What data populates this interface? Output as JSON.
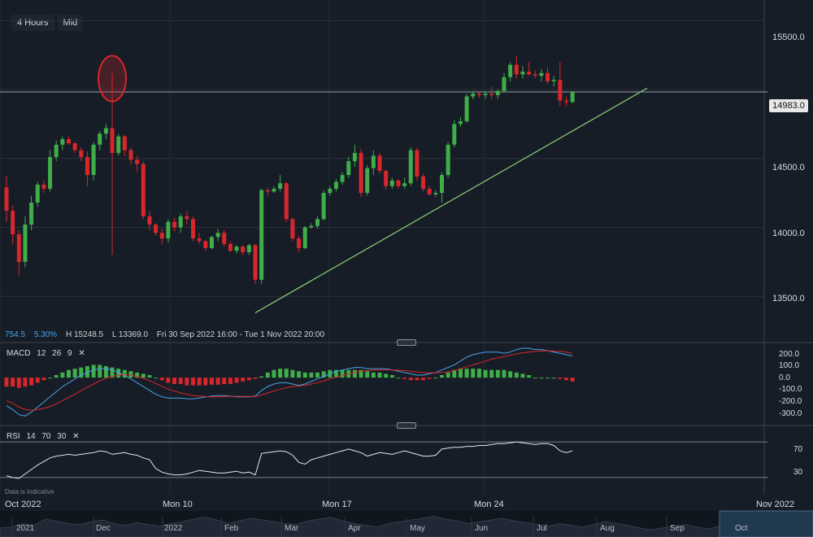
{
  "toolbar": {
    "interval": "4 Hours",
    "price_type": "Mid"
  },
  "info": {
    "value": "754.5",
    "change": "5.30%",
    "high": "H 15248.5",
    "low": "L 13369.0",
    "range": "Fri 30 Sep 2022 16:00 - Tue 1 Nov 2022 20:00"
  },
  "disclaimer": "Data is indicative",
  "current_price": "14983.0",
  "macd": {
    "name": "MACD",
    "fast": "12",
    "slow": "26",
    "signal": "9",
    "close_icon": "close-icon"
  },
  "rsi": {
    "name": "RSI",
    "period": "14",
    "upper": "70",
    "lower": "30",
    "close_icon": "close-icon"
  },
  "x_axis": [
    "Oct 2022",
    "Mon 10",
    "Mon 17",
    "Mon 24",
    "Nov 2022"
  ],
  "navigator": [
    "2021",
    "Dec",
    "2022",
    "Feb",
    "Mar",
    "Apr",
    "May",
    "Jun",
    "Jul",
    "Aug",
    "Sep",
    "Oct"
  ],
  "colors": {
    "up": "#3fae4a",
    "down": "#d9262c",
    "macd_line": "#4aa3e8",
    "signal_line": "#d9262c",
    "trend_line": "#8fd07a",
    "background": "#161d26"
  },
  "chart_data": [
    {
      "type": "candlestick",
      "ylim": [
        13300,
        15650
      ],
      "y_ticks": [
        "15500.0",
        "15000.0",
        "14500.0",
        "14000.0",
        "13500.0"
      ],
      "last_price": 14983,
      "candles": [
        [
          14290,
          14370,
          14040,
          14120
        ],
        [
          14120,
          14160,
          13880,
          13950
        ],
        [
          13950,
          13980,
          13650,
          13750
        ],
        [
          13750,
          14080,
          13710,
          14020
        ],
        [
          14020,
          14230,
          13980,
          14180
        ],
        [
          14180,
          14330,
          14150,
          14310
        ],
        [
          14310,
          14340,
          14250,
          14280
        ],
        [
          14280,
          14560,
          14260,
          14510
        ],
        [
          14510,
          14630,
          14480,
          14600
        ],
        [
          14600,
          14660,
          14560,
          14640
        ],
        [
          14640,
          14660,
          14600,
          14610
        ],
        [
          14610,
          14620,
          14540,
          14560
        ],
        [
          14560,
          14580,
          14480,
          14510
        ],
        [
          14510,
          14550,
          14300,
          14380
        ],
        [
          14380,
          14620,
          14340,
          14600
        ],
        [
          14600,
          14700,
          14560,
          14680
        ],
        [
          14680,
          14750,
          14640,
          14720
        ],
        [
          14720,
          15120,
          13800,
          14540
        ],
        [
          14540,
          14680,
          14520,
          14660
        ],
        [
          14660,
          14670,
          14520,
          14560
        ],
        [
          14560,
          14580,
          14460,
          14490
        ],
        [
          14490,
          14520,
          14400,
          14460
        ],
        [
          14460,
          14480,
          14060,
          14080
        ],
        [
          14080,
          14120,
          13980,
          14020
        ],
        [
          14020,
          14030,
          13940,
          13960
        ],
        [
          13960,
          13990,
          13880,
          13920
        ],
        [
          13920,
          14060,
          13890,
          14040
        ],
        [
          14040,
          14070,
          13970,
          14000
        ],
        [
          14000,
          14100,
          13960,
          14080
        ],
        [
          14080,
          14120,
          14020,
          14060
        ],
        [
          14060,
          14080,
          13900,
          13920
        ],
        [
          13920,
          13960,
          13880,
          13900
        ],
        [
          13900,
          13910,
          13830,
          13850
        ],
        [
          13850,
          13940,
          13840,
          13930
        ],
        [
          13930,
          13990,
          13900,
          13960
        ],
        [
          13960,
          13980,
          13860,
          13880
        ],
        [
          13880,
          13900,
          13820,
          13830
        ],
        [
          13830,
          13870,
          13810,
          13860
        ],
        [
          13860,
          13870,
          13800,
          13820
        ],
        [
          13820,
          13880,
          13800,
          13870
        ],
        [
          13870,
          13880,
          13590,
          13620
        ],
        [
          13620,
          14280,
          13590,
          14270
        ],
        [
          14270,
          14290,
          14230,
          14260
        ],
        [
          14260,
          14300,
          14250,
          14280
        ],
        [
          14280,
          14380,
          14260,
          14320
        ],
        [
          14320,
          14330,
          14040,
          14060
        ],
        [
          14060,
          14070,
          13900,
          13920
        ],
        [
          13920,
          13940,
          13820,
          13850
        ],
        [
          13850,
          14010,
          13840,
          14000
        ],
        [
          14000,
          14030,
          13990,
          14010
        ],
        [
          14010,
          14080,
          13990,
          14060
        ],
        [
          14060,
          14270,
          14050,
          14250
        ],
        [
          14250,
          14300,
          14230,
          14280
        ],
        [
          14280,
          14350,
          14260,
          14330
        ],
        [
          14330,
          14400,
          14310,
          14380
        ],
        [
          14380,
          14510,
          14360,
          14480
        ],
        [
          14480,
          14600,
          14440,
          14540
        ],
        [
          14540,
          14570,
          14220,
          14250
        ],
        [
          14250,
          14450,
          14230,
          14430
        ],
        [
          14430,
          14560,
          14380,
          14520
        ],
        [
          14520,
          14540,
          14390,
          14410
        ],
        [
          14410,
          14420,
          14270,
          14300
        ],
        [
          14300,
          14360,
          14280,
          14340
        ],
        [
          14340,
          14350,
          14280,
          14300
        ],
        [
          14300,
          14360,
          14280,
          14320
        ],
        [
          14320,
          14580,
          14300,
          14560
        ],
        [
          14560,
          14580,
          14340,
          14370
        ],
        [
          14370,
          14390,
          14260,
          14280
        ],
        [
          14280,
          14300,
          14230,
          14240
        ],
        [
          14240,
          14270,
          14220,
          14250
        ],
        [
          14250,
          14400,
          14180,
          14380
        ],
        [
          14380,
          14620,
          14360,
          14600
        ],
        [
          14600,
          14780,
          14580,
          14750
        ],
        [
          14750,
          14800,
          14730,
          14770
        ],
        [
          14770,
          14970,
          14760,
          14950
        ],
        [
          14950,
          14990,
          14930,
          14970
        ],
        [
          14970,
          14980,
          14940,
          14960
        ],
        [
          14960,
          14990,
          14930,
          14970
        ],
        [
          14970,
          15020,
          14930,
          14960
        ],
        [
          14960,
          15000,
          14930,
          14990
        ],
        [
          14990,
          15120,
          14980,
          15090
        ],
        [
          15090,
          15200,
          15060,
          15180
        ],
        [
          15180,
          15240,
          15080,
          15110
        ],
        [
          15110,
          15170,
          15080,
          15130
        ],
        [
          15130,
          15200,
          15100,
          15110
        ],
        [
          15110,
          15140,
          15080,
          15100
        ],
        [
          15100,
          15150,
          15060,
          15120
        ],
        [
          15120,
          15160,
          15040,
          15060
        ],
        [
          15060,
          15100,
          15020,
          15070
        ],
        [
          15070,
          15200,
          14880,
          14920
        ],
        [
          14920,
          14950,
          14880,
          14910
        ],
        [
          14910,
          14990,
          14900,
          14983
        ]
      ],
      "trend_line": {
        "from": [
          40,
          13380
        ],
        "to": [
          103,
          15010
        ]
      },
      "marker": {
        "shape": "ellipse",
        "candle_index": 17,
        "price": 15080,
        "color": "#d9262c"
      }
    },
    {
      "type": "macd",
      "ylim": [
        -330,
        230
      ],
      "y_ticks": [
        "200.0",
        "100.0",
        "0.0",
        "-100.0",
        "-200.0",
        "-300.0"
      ],
      "histogram": [
        -70,
        -70,
        -80,
        -70,
        -60,
        -40,
        -20,
        0,
        20,
        40,
        60,
        70,
        80,
        90,
        100,
        100,
        90,
        80,
        70,
        60,
        50,
        40,
        30,
        20,
        0,
        -20,
        -40,
        -50,
        -50,
        -60,
        -60,
        -60,
        -60,
        -55,
        -55,
        -50,
        -50,
        -40,
        -30,
        -20,
        -10,
        10,
        40,
        60,
        70,
        70,
        60,
        50,
        40,
        40,
        40,
        50,
        60,
        60,
        60,
        60,
        60,
        60,
        50,
        40,
        40,
        30,
        20,
        0,
        -10,
        -20,
        -20,
        -20,
        -10,
        0,
        20,
        40,
        60,
        70,
        70,
        70,
        70,
        60,
        60,
        60,
        60,
        50,
        40,
        30,
        20,
        0,
        0,
        0,
        0,
        -10,
        -20,
        -30
      ],
      "macd": [
        -220,
        -250,
        -290,
        -300,
        -270,
        -230,
        -190,
        -150,
        -110,
        -70,
        -40,
        -10,
        20,
        40,
        60,
        70,
        70,
        60,
        40,
        20,
        -10,
        -40,
        -70,
        -100,
        -130,
        -150,
        -160,
        -160,
        -160,
        -165,
        -165,
        -160,
        -150,
        -145,
        -140,
        -140,
        -145,
        -150,
        -150,
        -150,
        -145,
        -100,
        -70,
        -50,
        -40,
        -40,
        -50,
        -60,
        -50,
        -30,
        -10,
        10,
        30,
        50,
        60,
        70,
        80,
        80,
        70,
        70,
        70,
        70,
        60,
        50,
        40,
        30,
        20,
        20,
        30,
        40,
        60,
        80,
        100,
        130,
        160,
        180,
        190,
        200,
        200,
        200,
        190,
        200,
        220,
        230,
        230,
        220,
        220,
        210,
        200,
        190,
        180,
        170
      ],
      "signal": [
        -180,
        -200,
        -230,
        -250,
        -255,
        -250,
        -240,
        -225,
        -205,
        -180,
        -155,
        -130,
        -100,
        -75,
        -50,
        -25,
        -5,
        10,
        20,
        25,
        20,
        10,
        -5,
        -25,
        -45,
        -70,
        -90,
        -105,
        -120,
        -130,
        -140,
        -145,
        -148,
        -150,
        -150,
        -148,
        -146,
        -146,
        -147,
        -147,
        -148,
        -135,
        -120,
        -105,
        -90,
        -80,
        -70,
        -65,
        -60,
        -50,
        -40,
        -25,
        -10,
        5,
        15,
        30,
        40,
        50,
        55,
        60,
        60,
        62,
        60,
        58,
        55,
        50,
        45,
        40,
        38,
        38,
        40,
        45,
        55,
        70,
        85,
        100,
        115,
        130,
        145,
        155,
        165,
        175,
        185,
        195,
        200,
        205,
        208,
        210,
        208,
        205,
        200,
        190
      ]
    },
    {
      "type": "line",
      "name": "RSI",
      "ylim": [
        18,
        82
      ],
      "y_ticks": [
        "70",
        "30"
      ],
      "levels": [
        70,
        30
      ],
      "values": [
        32,
        30,
        29,
        34,
        39,
        44,
        48,
        52,
        54,
        55,
        56,
        55,
        56,
        57,
        58,
        60,
        59,
        56,
        57,
        58,
        56,
        55,
        52,
        50,
        40,
        36,
        34,
        33,
        33,
        34,
        36,
        38,
        37,
        36,
        35,
        35,
        36,
        37,
        35,
        36,
        33,
        57,
        58,
        59,
        60,
        59,
        55,
        47,
        45,
        50,
        52,
        54,
        56,
        58,
        60,
        62,
        60,
        58,
        54,
        56,
        58,
        57,
        56,
        58,
        60,
        58,
        56,
        54,
        54,
        55,
        62,
        63,
        64,
        64,
        65,
        65,
        66,
        66,
        67,
        68,
        68,
        69,
        70,
        69,
        68,
        67,
        68,
        68,
        66,
        60,
        58,
        60
      ]
    }
  ]
}
